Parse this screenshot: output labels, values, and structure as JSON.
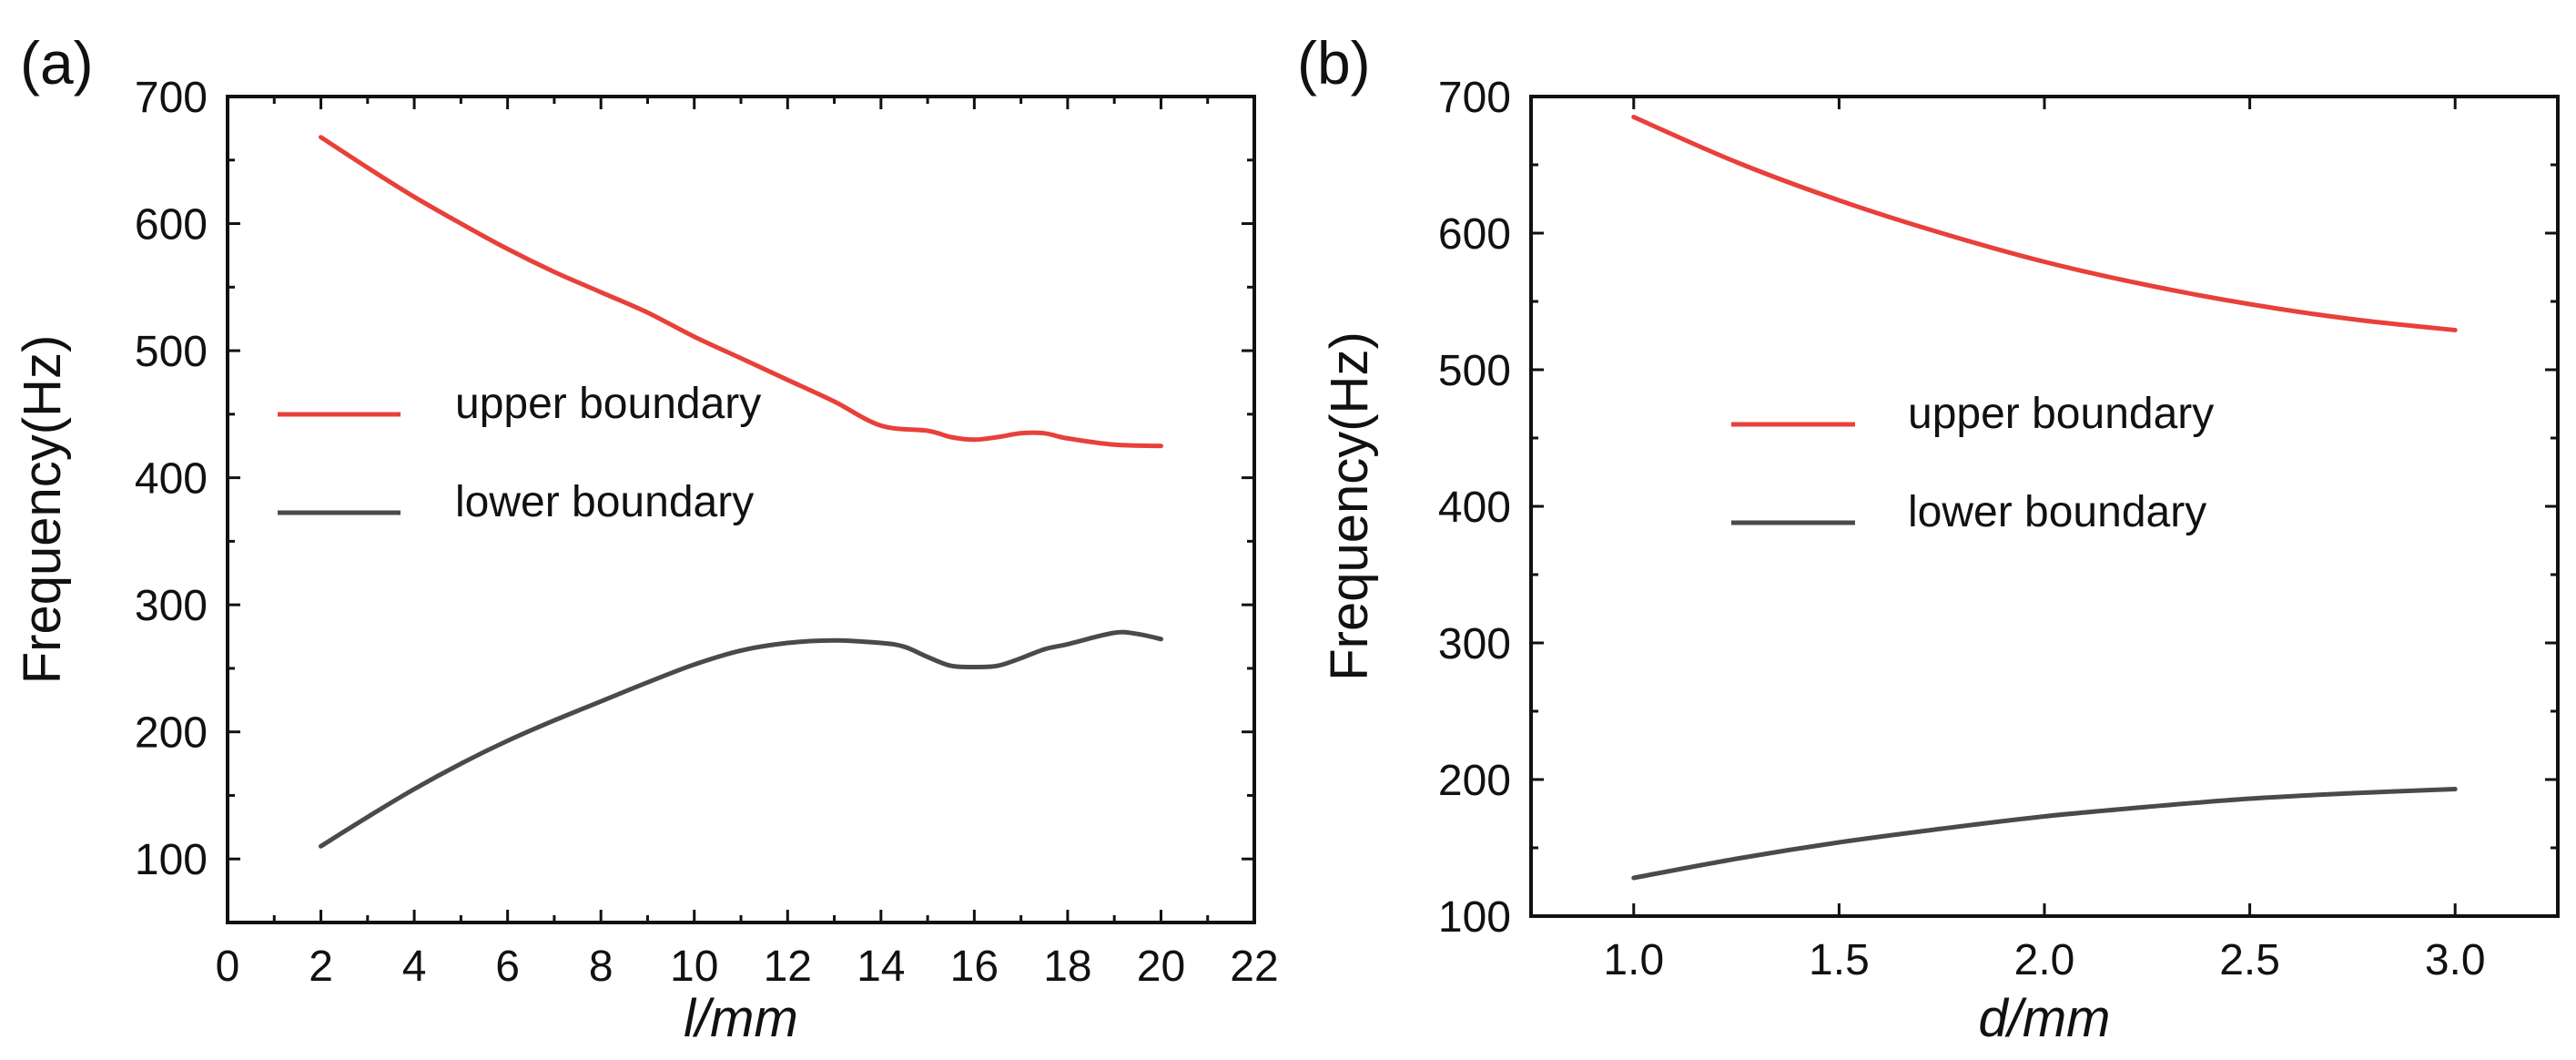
{
  "chart_data": [
    {
      "panel_label": "(a)",
      "type": "line",
      "xlabel": "l/mm",
      "ylabel": "Frequency(Hz)",
      "xlim": [
        0,
        22
      ],
      "ylim": [
        50,
        700
      ],
      "xticks": [
        0,
        2,
        4,
        6,
        8,
        10,
        12,
        14,
        16,
        18,
        20,
        22
      ],
      "xtick_labels": [
        "0",
        "2",
        "4",
        "6",
        "8",
        "10",
        "12",
        "14",
        "16",
        "18",
        "20",
        "22"
      ],
      "yticks": [
        100,
        200,
        300,
        400,
        500,
        600,
        700
      ],
      "ytick_labels": [
        "100",
        "200",
        "300",
        "400",
        "500",
        "600",
        "700"
      ],
      "legend_position": "middle-left",
      "series": [
        {
          "name": "upper boundary",
          "color": "#e8403a",
          "x": [
            2,
            3,
            4,
            5,
            6,
            7,
            8,
            9,
            10,
            11,
            12,
            13,
            14,
            15,
            15.5,
            16,
            16.5,
            17,
            17.5,
            18,
            19,
            20
          ],
          "y": [
            668,
            644,
            621,
            600,
            580,
            562,
            546,
            530,
            511,
            494,
            477,
            460,
            441,
            437,
            432,
            430,
            432,
            435,
            435,
            431,
            426,
            425
          ]
        },
        {
          "name": "lower boundary",
          "color": "#4a4a4a",
          "x": [
            2,
            3,
            4,
            5,
            6,
            7,
            8,
            9,
            10,
            11,
            12,
            13,
            14,
            14.5,
            15,
            15.5,
            16,
            16.5,
            17,
            17.5,
            18,
            19,
            19.5,
            20
          ],
          "y": [
            110,
            133,
            155,
            175,
            193,
            209,
            224,
            239,
            253,
            264,
            270,
            272,
            270,
            267,
            259,
            252,
            251,
            252,
            258,
            265,
            269,
            278,
            277,
            273
          ]
        }
      ]
    },
    {
      "panel_label": "(b)",
      "type": "line",
      "xlabel": "d/mm",
      "ylabel": "Frequency(Hz)",
      "xlim": [
        0.75,
        3.25
      ],
      "ylim": [
        100,
        700
      ],
      "xticks": [
        1.0,
        1.5,
        2.0,
        2.5,
        3.0
      ],
      "xtick_labels": [
        "1.0",
        "1.5",
        "2.0",
        "2.5",
        "3.0"
      ],
      "yticks": [
        100,
        200,
        300,
        400,
        500,
        600,
        700
      ],
      "ytick_labels": [
        "100",
        "200",
        "300",
        "400",
        "500",
        "600",
        "700"
      ],
      "legend_position": "middle-center",
      "series": [
        {
          "name": "upper boundary",
          "color": "#e8403a",
          "x": [
            1.0,
            1.25,
            1.5,
            1.75,
            2.0,
            2.25,
            2.5,
            2.75,
            3.0
          ],
          "y": [
            685,
            652,
            624,
            600,
            579,
            562,
            548,
            537,
            529
          ]
        },
        {
          "name": "lower boundary",
          "color": "#4a4a4a",
          "x": [
            1.0,
            1.25,
            1.5,
            1.75,
            2.0,
            2.25,
            2.5,
            2.75,
            3.0
          ],
          "y": [
            128,
            142,
            154,
            164,
            173,
            180,
            186,
            190,
            193
          ]
        }
      ]
    }
  ]
}
